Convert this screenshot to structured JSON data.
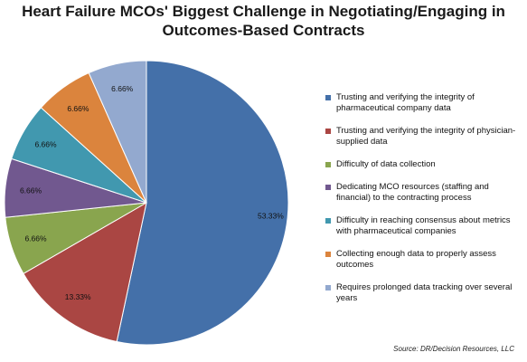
{
  "chart_data": {
    "type": "pie",
    "title_lines": [
      "Heart Failure MCOs' Biggest Challenge in Negotiating/Engaging in",
      "Outcomes-Based Contracts"
    ],
    "legend_position": "right",
    "slices": [
      {
        "label": "Trusting and verifying the integrity of pharmaceutical company data",
        "value": 53.33,
        "value_label": "53.33%",
        "color": "#4470A9"
      },
      {
        "label": "Trusting and verifying the integrity of physician-supplied data",
        "value": 13.33,
        "value_label": "13.33%",
        "color": "#AA4643"
      },
      {
        "label": "Difficulty of data collection",
        "value": 6.66,
        "value_label": "6.66%",
        "color": "#89A54E"
      },
      {
        "label": "Dedicating MCO resources (staffing and financial) to the contracting process",
        "value": 6.66,
        "value_label": "6.66%",
        "color": "#71588F"
      },
      {
        "label": "Difficulty in reaching consensus about metrics with pharmaceutical companies",
        "value": 6.66,
        "value_label": "6.66%",
        "color": "#4198AF"
      },
      {
        "label": "Collecting enough data to properly assess outcomes",
        "value": 6.66,
        "value_label": "6.66%",
        "color": "#DB843D"
      },
      {
        "label": "Requires prolonged data tracking over several years",
        "value": 6.66,
        "value_label": "6.66%",
        "color": "#93A9CF"
      }
    ],
    "source": "Source:  DR/Decision Resources, LLC"
  }
}
